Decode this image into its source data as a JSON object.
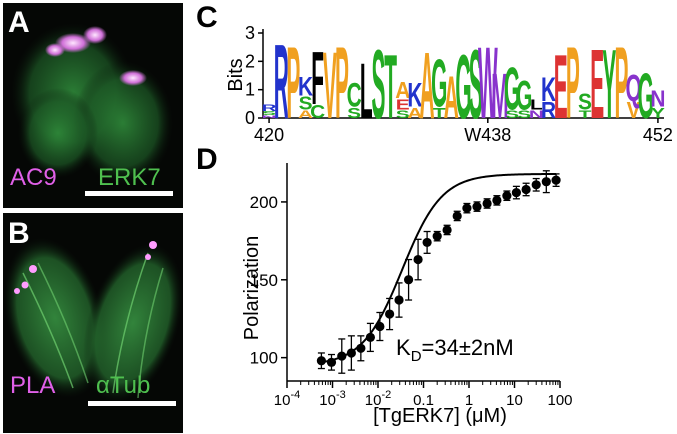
{
  "figure": {
    "panels": {
      "A": {
        "letter": "A",
        "labels": [
          {
            "text": "AC9",
            "color": "#e060e8"
          },
          {
            "text": "ERK7",
            "color": "#4fc04f"
          }
        ]
      },
      "B": {
        "letter": "B",
        "labels": [
          {
            "text": "PLA",
            "color": "#e060e8"
          },
          {
            "text": "αTub",
            "color": "#4fc04f"
          }
        ]
      },
      "C": {
        "letter": "C",
        "ylabel": "Bits",
        "yticks": [
          "0",
          "1",
          "2",
          "3"
        ],
        "xticks": [
          "420",
          "W438",
          "452"
        ]
      },
      "D": {
        "letter": "D",
        "ylabel": "Polarization",
        "xlabel": "[TgERK7] (μM)",
        "annotation_prefix": "K",
        "annotation_sub": "D",
        "annotation_value": "=34±2nM"
      }
    }
  },
  "chart_data": [
    {
      "type": "logo",
      "ylabel": "Bits",
      "ylim": [
        0,
        3
      ],
      "x_range": [
        420,
        452
      ],
      "xticks": [
        "420",
        "W438",
        "452"
      ],
      "positions": [
        {
          "pos": 420,
          "letters": [
            {
              "c": "R",
              "h": 0.25
            },
            {
              "c": "S",
              "h": 0.15
            },
            {
              "c": "N",
              "h": 0.1
            }
          ]
        },
        {
          "pos": 421,
          "letters": [
            {
              "c": "R",
              "h": 2.8
            }
          ]
        },
        {
          "pos": 422,
          "letters": [
            {
              "c": "P",
              "h": 2.7
            }
          ]
        },
        {
          "pos": 423,
          "letters": [
            {
              "c": "K",
              "h": 0.7
            },
            {
              "c": "S",
              "h": 0.5
            },
            {
              "c": "A",
              "h": 0.3
            }
          ]
        },
        {
          "pos": 424,
          "letters": [
            {
              "c": "F",
              "h": 2.0
            },
            {
              "c": "C",
              "h": 0.5
            }
          ]
        },
        {
          "pos": 425,
          "letters": [
            {
              "c": "V",
              "h": 2.5
            }
          ]
        },
        {
          "pos": 426,
          "letters": [
            {
              "c": "P",
              "h": 2.7
            }
          ]
        },
        {
          "pos": 427,
          "letters": [
            {
              "c": "C",
              "h": 0.9
            },
            {
              "c": "S",
              "h": 0.4
            }
          ]
        },
        {
          "pos": 428,
          "letters": [
            {
              "c": "L",
              "h": 2.1
            }
          ]
        },
        {
          "pos": 429,
          "letters": [
            {
              "c": "S",
              "h": 2.6
            }
          ]
        },
        {
          "pos": 430,
          "letters": [
            {
              "c": "T",
              "h": 2.4
            }
          ]
        },
        {
          "pos": 431,
          "letters": [
            {
              "c": "A",
              "h": 0.6
            },
            {
              "c": "E",
              "h": 0.4
            },
            {
              "c": "S",
              "h": 0.3
            }
          ]
        },
        {
          "pos": 432,
          "letters": [
            {
              "c": "K",
              "h": 0.9
            },
            {
              "c": "A",
              "h": 0.4
            }
          ]
        },
        {
          "pos": 433,
          "letters": [
            {
              "c": "A",
              "h": 2.5
            }
          ]
        },
        {
          "pos": 434,
          "letters": [
            {
              "c": "G",
              "h": 1.8
            },
            {
              "c": "T",
              "h": 0.4
            }
          ]
        },
        {
          "pos": 435,
          "letters": [
            {
              "c": "A",
              "h": 1.6
            }
          ]
        },
        {
          "pos": 436,
          "letters": [
            {
              "c": "G",
              "h": 2.4
            }
          ]
        },
        {
          "pos": 437,
          "letters": [
            {
              "c": "S",
              "h": 2.6
            }
          ]
        },
        {
          "pos": 438,
          "letters": [
            {
              "c": "W",
              "h": 2.7
            }
          ]
        },
        {
          "pos": 439,
          "letters": [
            {
              "c": "M",
              "h": 1.7
            }
          ]
        },
        {
          "pos": 440,
          "letters": [
            {
              "c": "G",
              "h": 1.6
            },
            {
              "c": "S",
              "h": 0.3
            }
          ]
        },
        {
          "pos": 441,
          "letters": [
            {
              "c": "G",
              "h": 1.1
            },
            {
              "c": "S",
              "h": 0.3
            }
          ]
        },
        {
          "pos": 442,
          "letters": [
            {
              "c": "L",
              "h": 0.4
            },
            {
              "c": "N",
              "h": 0.3
            }
          ]
        },
        {
          "pos": 443,
          "letters": [
            {
              "c": "K",
              "h": 0.9
            },
            {
              "c": "R",
              "h": 0.6
            }
          ]
        },
        {
          "pos": 444,
          "letters": [
            {
              "c": "E",
              "h": 2.4
            }
          ]
        },
        {
          "pos": 445,
          "letters": [
            {
              "c": "P",
              "h": 2.7
            }
          ]
        },
        {
          "pos": 446,
          "letters": [
            {
              "c": "S",
              "h": 0.6
            },
            {
              "c": "T",
              "h": 0.3
            }
          ]
        },
        {
          "pos": 447,
          "letters": [
            {
              "c": "E",
              "h": 2.6
            }
          ]
        },
        {
          "pos": 448,
          "letters": [
            {
              "c": "Y",
              "h": 2.6
            }
          ]
        },
        {
          "pos": 449,
          "letters": [
            {
              "c": "P",
              "h": 2.7
            }
          ]
        },
        {
          "pos": 450,
          "letters": [
            {
              "c": "Q",
              "h": 1.0
            },
            {
              "c": "V",
              "h": 0.6
            }
          ]
        },
        {
          "pos": 451,
          "letters": [
            {
              "c": "G",
              "h": 1.7
            }
          ]
        },
        {
          "pos": 452,
          "letters": [
            {
              "c": "N",
              "h": 0.6
            },
            {
              "c": "Y",
              "h": 0.4
            }
          ]
        }
      ]
    },
    {
      "type": "scatter",
      "ylabel": "Polarization",
      "xlabel": "[TgERK7] (μM)",
      "xscale": "log",
      "xlim": [
        0.0001,
        100
      ],
      "ylim": [
        85,
        225
      ],
      "xticks": [
        0.0001,
        0.001,
        0.01,
        0.1,
        1,
        10,
        100
      ],
      "xtick_labels": [
        {
          "base": "10",
          "exp": "-4"
        },
        {
          "base": "10",
          "exp": "-3"
        },
        {
          "base": "10",
          "exp": "-2"
        },
        {
          "base": "0.1",
          "exp": ""
        },
        {
          "base": "1",
          "exp": ""
        },
        {
          "base": "10",
          "exp": ""
        },
        {
          "base": "100",
          "exp": ""
        }
      ],
      "yticks": [
        100,
        150,
        200
      ],
      "series": [
        {
          "x": [
            0.00057,
            0.00095,
            0.0016,
            0.0026,
            0.0042,
            0.0068,
            0.011,
            0.018,
            0.029,
            0.047,
            0.076,
            0.12,
            0.2,
            0.33,
            0.55,
            0.9,
            1.5,
            2.5,
            4.1,
            6.8,
            11,
            18,
            30,
            50,
            82
          ],
          "y": [
            98,
            97,
            101,
            103,
            106,
            113,
            120,
            128,
            137,
            150,
            163,
            174,
            178,
            182,
            191,
            196,
            197,
            199,
            201,
            204,
            206,
            208,
            211,
            213,
            214
          ],
          "err": [
            5,
            5,
            11,
            11,
            8,
            9,
            9,
            10,
            11,
            13,
            13,
            7,
            3,
            3,
            3,
            3,
            3,
            3,
            3,
            3,
            4,
            4,
            4,
            7,
            4
          ]
        }
      ],
      "fit": {
        "model": "binding",
        "bottom": 95,
        "top": 218,
        "ec50": 0.034,
        "hill": 1
      }
    }
  ]
}
